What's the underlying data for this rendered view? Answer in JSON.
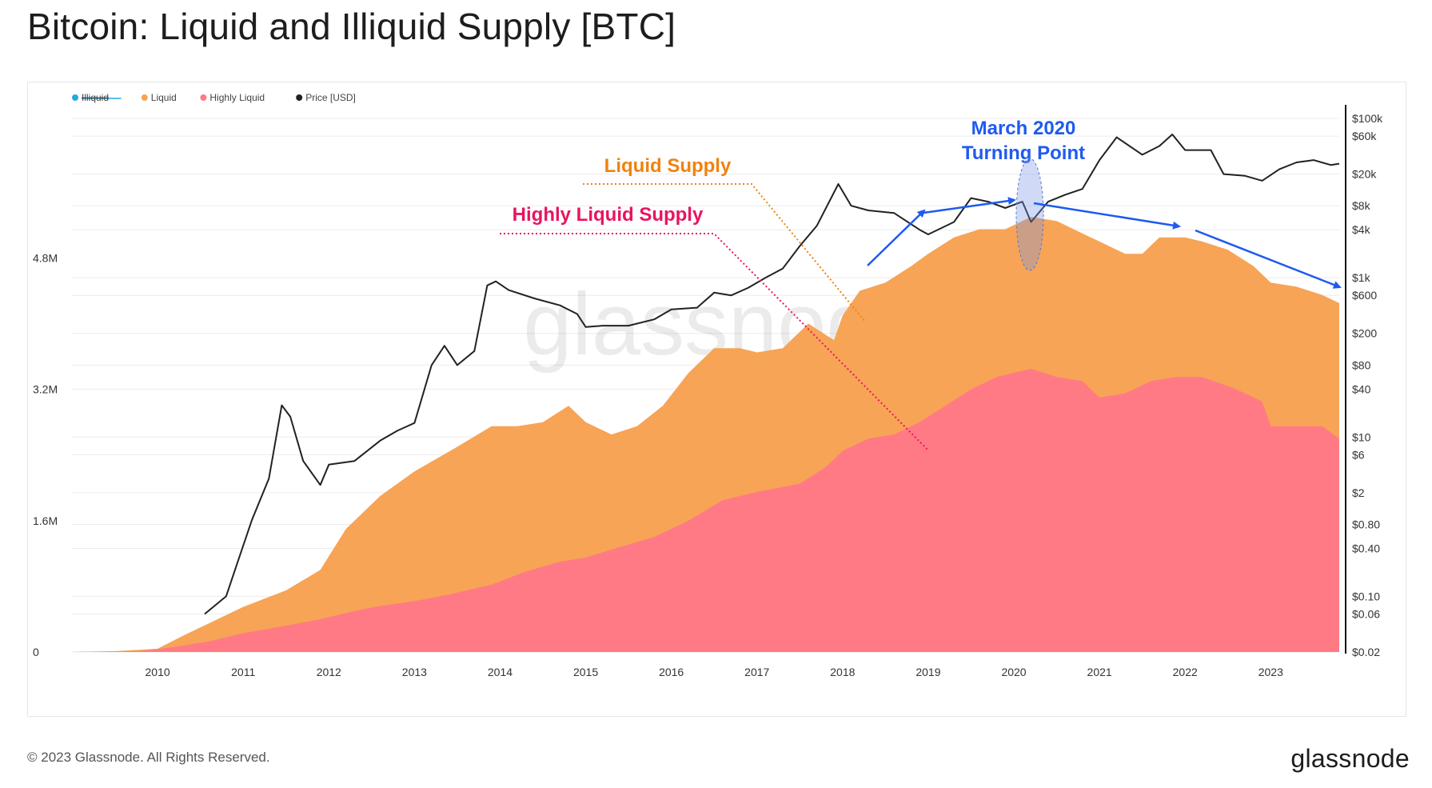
{
  "title": "Bitcoin: Liquid and Illiquid Supply [BTC]",
  "footer": {
    "copyright": "© 2023 Glassnode. All Rights Reserved.",
    "brand": "glassnode"
  },
  "watermark": "glassnode",
  "colors": {
    "illiquid": "#29a8e0",
    "liquid": "#f7a456",
    "highly_liquid": "#ff7a85",
    "price": "#222222",
    "liquid_label": "#f0820f",
    "highly_liquid_label": "#e8145f",
    "turning_point": "#1f5af0"
  },
  "chart_data": {
    "type": "area",
    "legend": [
      {
        "label": "Illiquid",
        "color": "#29a8e0",
        "hidden": true
      },
      {
        "label": "Liquid",
        "color": "#f7a456",
        "hidden": false
      },
      {
        "label": "Highly Liquid",
        "color": "#ff7a85",
        "hidden": false
      },
      {
        "label": "Price [USD]",
        "color": "#222222",
        "hidden": false
      }
    ],
    "legend_position": "top-left",
    "x_ticks": [
      "2010",
      "2011",
      "2012",
      "2013",
      "2014",
      "2015",
      "2016",
      "2017",
      "2018",
      "2019",
      "2020",
      "2021",
      "2022",
      "2023"
    ],
    "y_left_ticks": [
      {
        "label": "0",
        "value": 0
      },
      {
        "label": "1.6M",
        "value": 1600000
      },
      {
        "label": "3.2M",
        "value": 3200000
      },
      {
        "label": "4.8M",
        "value": 4800000
      }
    ],
    "y_left_range": [
      0,
      6500000
    ],
    "y_right_scale": "log",
    "y_right_range": [
      0.02,
      100000
    ],
    "y_right_ticks": [
      {
        "label": "$100k",
        "value": 100000
      },
      {
        "label": "$60k",
        "value": 60000
      },
      {
        "label": "$20k",
        "value": 20000
      },
      {
        "label": "$8k",
        "value": 8000
      },
      {
        "label": "$4k",
        "value": 4000
      },
      {
        "label": "$1k",
        "value": 1000
      },
      {
        "label": "$600",
        "value": 600
      },
      {
        "label": "$200",
        "value": 200
      },
      {
        "label": "$80",
        "value": 80
      },
      {
        "label": "$40",
        "value": 40
      },
      {
        "label": "$10",
        "value": 10
      },
      {
        "label": "$6",
        "value": 6
      },
      {
        "label": "$2",
        "value": 2
      },
      {
        "label": "$0.80",
        "value": 0.8
      },
      {
        "label": "$0.40",
        "value": 0.4
      },
      {
        "label": "$0.10",
        "value": 0.1
      },
      {
        "label": "$0.06",
        "value": 0.06
      },
      {
        "label": "$0.02",
        "value": 0.02
      }
    ],
    "x_range": [
      2009.0,
      2023.8
    ],
    "series": [
      {
        "name": "Liquid",
        "points": [
          [
            2009.0,
            0
          ],
          [
            2009.5,
            10000
          ],
          [
            2010.0,
            40000
          ],
          [
            2010.3,
            200000
          ],
          [
            2010.6,
            350000
          ],
          [
            2011.0,
            550000
          ],
          [
            2011.5,
            750000
          ],
          [
            2011.9,
            1000000
          ],
          [
            2012.2,
            1500000
          ],
          [
            2012.6,
            1900000
          ],
          [
            2013.0,
            2200000
          ],
          [
            2013.5,
            2500000
          ],
          [
            2013.9,
            2750000
          ],
          [
            2014.2,
            2750000
          ],
          [
            2014.5,
            2800000
          ],
          [
            2014.8,
            3000000
          ],
          [
            2015.0,
            2800000
          ],
          [
            2015.3,
            2650000
          ],
          [
            2015.6,
            2750000
          ],
          [
            2015.9,
            3000000
          ],
          [
            2016.2,
            3400000
          ],
          [
            2016.5,
            3700000
          ],
          [
            2016.8,
            3700000
          ],
          [
            2017.0,
            3650000
          ],
          [
            2017.3,
            3700000
          ],
          [
            2017.6,
            4000000
          ],
          [
            2017.9,
            3800000
          ],
          [
            2018.0,
            4100000
          ],
          [
            2018.2,
            4400000
          ],
          [
            2018.5,
            4500000
          ],
          [
            2018.8,
            4700000
          ],
          [
            2019.0,
            4850000
          ],
          [
            2019.3,
            5050000
          ],
          [
            2019.6,
            5150000
          ],
          [
            2019.9,
            5150000
          ],
          [
            2020.2,
            5300000
          ],
          [
            2020.5,
            5250000
          ],
          [
            2020.8,
            5100000
          ],
          [
            2021.0,
            5000000
          ],
          [
            2021.3,
            4850000
          ],
          [
            2021.5,
            4850000
          ],
          [
            2021.7,
            5050000
          ],
          [
            2022.0,
            5050000
          ],
          [
            2022.2,
            5000000
          ],
          [
            2022.5,
            4900000
          ],
          [
            2022.8,
            4700000
          ],
          [
            2023.0,
            4500000
          ],
          [
            2023.3,
            4450000
          ],
          [
            2023.6,
            4350000
          ],
          [
            2023.8,
            4250000
          ]
        ]
      },
      {
        "name": "Highly Liquid",
        "points": [
          [
            2009.0,
            0
          ],
          [
            2009.8,
            10000
          ],
          [
            2010.2,
            60000
          ],
          [
            2010.6,
            130000
          ],
          [
            2011.0,
            230000
          ],
          [
            2011.5,
            320000
          ],
          [
            2011.9,
            400000
          ],
          [
            2012.3,
            500000
          ],
          [
            2012.6,
            560000
          ],
          [
            2013.0,
            620000
          ],
          [
            2013.4,
            700000
          ],
          [
            2013.9,
            820000
          ],
          [
            2014.3,
            980000
          ],
          [
            2014.7,
            1100000
          ],
          [
            2015.0,
            1150000
          ],
          [
            2015.4,
            1280000
          ],
          [
            2015.8,
            1400000
          ],
          [
            2016.2,
            1600000
          ],
          [
            2016.6,
            1850000
          ],
          [
            2017.0,
            1950000
          ],
          [
            2017.5,
            2050000
          ],
          [
            2017.8,
            2250000
          ],
          [
            2018.0,
            2450000
          ],
          [
            2018.3,
            2600000
          ],
          [
            2018.6,
            2650000
          ],
          [
            2018.9,
            2800000
          ],
          [
            2019.2,
            3000000
          ],
          [
            2019.5,
            3200000
          ],
          [
            2019.8,
            3350000
          ],
          [
            2020.2,
            3450000
          ],
          [
            2020.5,
            3350000
          ],
          [
            2020.8,
            3300000
          ],
          [
            2021.0,
            3100000
          ],
          [
            2021.3,
            3150000
          ],
          [
            2021.6,
            3300000
          ],
          [
            2021.9,
            3350000
          ],
          [
            2022.2,
            3350000
          ],
          [
            2022.6,
            3200000
          ],
          [
            2022.9,
            3050000
          ],
          [
            2023.0,
            2750000
          ],
          [
            2023.3,
            2750000
          ],
          [
            2023.6,
            2750000
          ],
          [
            2023.8,
            2600000
          ]
        ]
      },
      {
        "name": "Price [USD]",
        "axis": "right",
        "points": [
          [
            2010.55,
            0.06
          ],
          [
            2010.8,
            0.1
          ],
          [
            2010.95,
            0.3
          ],
          [
            2011.1,
            0.9
          ],
          [
            2011.3,
            3
          ],
          [
            2011.45,
            25
          ],
          [
            2011.55,
            18
          ],
          [
            2011.7,
            5
          ],
          [
            2011.9,
            2.5
          ],
          [
            2012.0,
            4.5
          ],
          [
            2012.3,
            5
          ],
          [
            2012.6,
            9
          ],
          [
            2012.8,
            12
          ],
          [
            2013.0,
            15
          ],
          [
            2013.2,
            80
          ],
          [
            2013.35,
            140
          ],
          [
            2013.5,
            80
          ],
          [
            2013.7,
            120
          ],
          [
            2013.85,
            800
          ],
          [
            2013.95,
            900
          ],
          [
            2014.1,
            700
          ],
          [
            2014.4,
            550
          ],
          [
            2014.7,
            450
          ],
          [
            2014.9,
            350
          ],
          [
            2015.0,
            240
          ],
          [
            2015.2,
            250
          ],
          [
            2015.5,
            250
          ],
          [
            2015.8,
            300
          ],
          [
            2016.0,
            400
          ],
          [
            2016.3,
            420
          ],
          [
            2016.5,
            650
          ],
          [
            2016.7,
            600
          ],
          [
            2016.9,
            750
          ],
          [
            2017.1,
            1000
          ],
          [
            2017.3,
            1300
          ],
          [
            2017.5,
            2500
          ],
          [
            2017.7,
            4500
          ],
          [
            2017.95,
            15000
          ],
          [
            2018.1,
            8000
          ],
          [
            2018.3,
            7000
          ],
          [
            2018.6,
            6500
          ],
          [
            2018.9,
            4000
          ],
          [
            2019.0,
            3500
          ],
          [
            2019.3,
            5000
          ],
          [
            2019.5,
            10000
          ],
          [
            2019.7,
            9000
          ],
          [
            2019.9,
            7500
          ],
          [
            2020.1,
            9000
          ],
          [
            2020.2,
            5000
          ],
          [
            2020.4,
            9000
          ],
          [
            2020.6,
            11000
          ],
          [
            2020.8,
            13000
          ],
          [
            2021.0,
            30000
          ],
          [
            2021.2,
            58000
          ],
          [
            2021.5,
            35000
          ],
          [
            2021.7,
            45000
          ],
          [
            2021.85,
            63000
          ],
          [
            2022.0,
            40000
          ],
          [
            2022.3,
            40000
          ],
          [
            2022.45,
            20000
          ],
          [
            2022.7,
            19000
          ],
          [
            2022.9,
            16500
          ],
          [
            2023.1,
            23000
          ],
          [
            2023.3,
            28000
          ],
          [
            2023.5,
            30000
          ],
          [
            2023.7,
            26000
          ],
          [
            2023.8,
            27000
          ]
        ]
      }
    ],
    "annotations": [
      {
        "text": "Liquid Supply",
        "color": "#f0820f"
      },
      {
        "text": "Highly Liquid Supply",
        "color": "#e8145f"
      },
      {
        "line1": "March 2020",
        "line2": "Turning Point",
        "color": "#1f5af0"
      }
    ]
  }
}
